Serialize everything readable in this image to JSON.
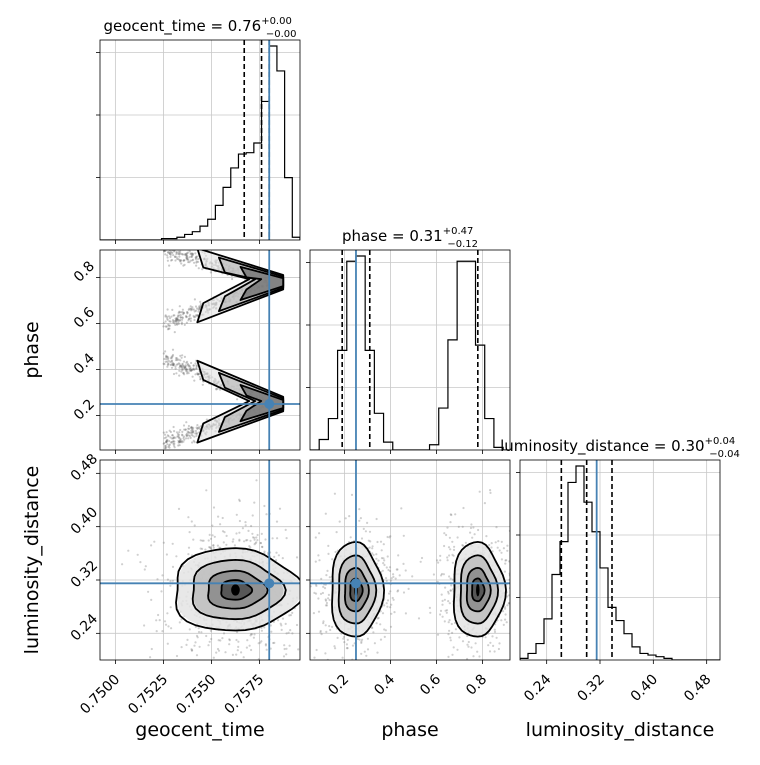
{
  "chart_data": {
    "type": "corner",
    "parameters": [
      "geocent_time",
      "phase",
      "luminosity_distance"
    ],
    "injection": {
      "geocent_time": 0.758,
      "phase": 0.25,
      "luminosity_distance": 0.315
    },
    "titles": {
      "geocent_time": {
        "prefix": "geocent_time = 0.76",
        "plus": "+0.00",
        "minus": "−0.00"
      },
      "phase": {
        "prefix": "phase = 0.31",
        "plus": "+0.47",
        "minus": "−0.12"
      },
      "luminosity_distance": {
        "prefix": "luminosity_distance = 0.30",
        "plus": "+0.04",
        "minus": "−0.04"
      }
    },
    "axes": {
      "geocent_time": {
        "range": [
          0.7492,
          0.7596
        ],
        "ticks": [
          0.75,
          0.7525,
          0.755,
          0.7575
        ],
        "tick_labels": [
          "0.7500",
          "0.7525",
          "0.7550",
          "0.7575"
        ],
        "label": "geocent_time"
      },
      "phase": {
        "range": [
          0.05,
          0.92
        ],
        "ticks": [
          0.2,
          0.4,
          0.6,
          0.8
        ],
        "tick_labels": [
          "0.2",
          "0.4",
          "0.6",
          "0.8"
        ],
        "label": "phase"
      },
      "luminosity_distance": {
        "range": [
          0.2,
          0.5
        ],
        "ticks": [
          0.24,
          0.32,
          0.4,
          0.48
        ],
        "tick_labels": [
          "0.24",
          "0.32",
          "0.40",
          "0.48"
        ],
        "label": "luminosity_distance"
      }
    },
    "histograms": {
      "geocent_time": {
        "bins": [
          0.7492,
          0.7496,
          0.75,
          0.7504,
          0.7508,
          0.7512,
          0.7516,
          0.752,
          0.7524,
          0.7528,
          0.7532,
          0.7536,
          0.754,
          0.7544,
          0.7548,
          0.7552,
          0.7556,
          0.756,
          0.7564,
          0.7568,
          0.7572,
          0.7576,
          0.758,
          0.7584,
          0.7588,
          0.7592,
          0.7596
        ],
        "counts": [
          0,
          0,
          0,
          0,
          0,
          0,
          0,
          0,
          1,
          1,
          2,
          4,
          6,
          10,
          15,
          25,
          38,
          52,
          62,
          63,
          70,
          100,
          140,
          122,
          45,
          2
        ],
        "quantiles": [
          0.7567,
          0.7576,
          0.758
        ]
      },
      "phase": {
        "bins": [
          0.05,
          0.09,
          0.13,
          0.17,
          0.21,
          0.25,
          0.29,
          0.33,
          0.37,
          0.41,
          0.45,
          0.49,
          0.53,
          0.57,
          0.61,
          0.65,
          0.69,
          0.73,
          0.77,
          0.81,
          0.85,
          0.89,
          0.93
        ],
        "counts": [
          0,
          4,
          12,
          38,
          72,
          74,
          38,
          14,
          3,
          0,
          0,
          0,
          0,
          2,
          16,
          42,
          72,
          72,
          40,
          12,
          1,
          0
        ],
        "quantiles": [
          0.19,
          0.31,
          0.78
        ]
      },
      "luminosity_distance": {
        "bins": [
          0.2,
          0.212,
          0.224,
          0.236,
          0.248,
          0.26,
          0.272,
          0.284,
          0.296,
          0.308,
          0.32,
          0.332,
          0.344,
          0.356,
          0.368,
          0.38,
          0.392,
          0.404,
          0.416,
          0.428,
          0.44,
          0.452,
          0.464,
          0.476,
          0.488,
          0.5
        ],
        "counts": [
          1,
          4,
          10,
          25,
          52,
          72,
          108,
          118,
          96,
          78,
          56,
          32,
          24,
          16,
          8,
          4,
          3,
          2,
          1,
          0,
          0,
          0,
          0,
          0,
          0
        ],
        "quantiles": [
          0.262,
          0.3,
          0.338
        ]
      }
    },
    "contour_levels": [
      "0.5-sigma",
      "1-sigma",
      "1.5-sigma",
      "2-sigma"
    ],
    "grid": true
  }
}
